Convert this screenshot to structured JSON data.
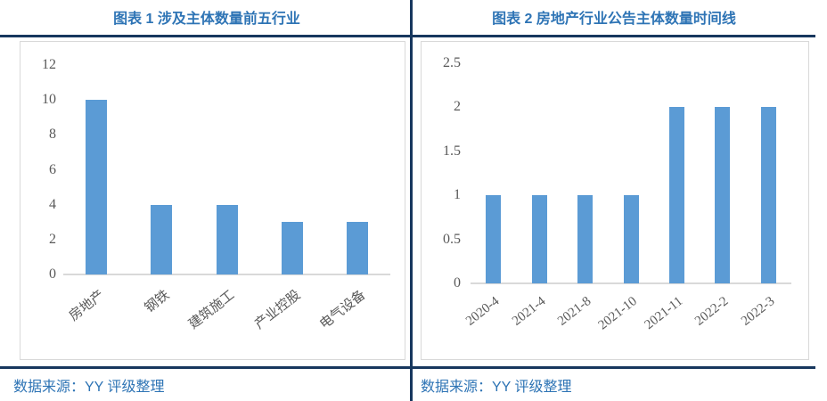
{
  "panels": [
    {
      "title": "图表 1 涉及主体数量前五行业",
      "source": "数据来源：YY 评级整理"
    },
    {
      "title": "图表 2 房地产行业公告主体数量时间线",
      "source": "数据来源：YY 评级整理"
    }
  ],
  "chart_data": [
    {
      "type": "bar",
      "title": "图表 1 涉及主体数量前五行业",
      "categories": [
        "房地产",
        "钢铁",
        "建筑施工",
        "产业控股",
        "电气设备"
      ],
      "values": [
        10,
        4,
        4,
        3,
        3
      ],
      "yticks": [
        0,
        2,
        4,
        6,
        8,
        10,
        12
      ],
      "ylim": [
        0,
        12
      ],
      "xlabel": "",
      "ylabel": "",
      "grid": false,
      "legend_position": "none",
      "bar_color": "#5B9BD5"
    },
    {
      "type": "bar",
      "title": "图表 2 房地产行业公告主体数量时间线",
      "categories": [
        "2020-4",
        "2021-4",
        "2021-8",
        "2021-10",
        "2021-11",
        "2022-2",
        "2022-3"
      ],
      "values": [
        1,
        1,
        1,
        1,
        2,
        2,
        2
      ],
      "yticks": [
        0,
        0.5,
        1,
        1.5,
        2,
        2.5
      ],
      "ylim": [
        0,
        2.5
      ],
      "xlabel": "",
      "ylabel": "",
      "grid": false,
      "legend_position": "none",
      "bar_color": "#5B9BD5"
    }
  ],
  "colors": {
    "title_blue": "#2E74B5",
    "rule_navy": "#17375E",
    "bar_blue": "#5B9BD5",
    "axis_text": "#595959",
    "chart_border": "#D9D9D9",
    "axis_line": "#D9D9D9"
  }
}
